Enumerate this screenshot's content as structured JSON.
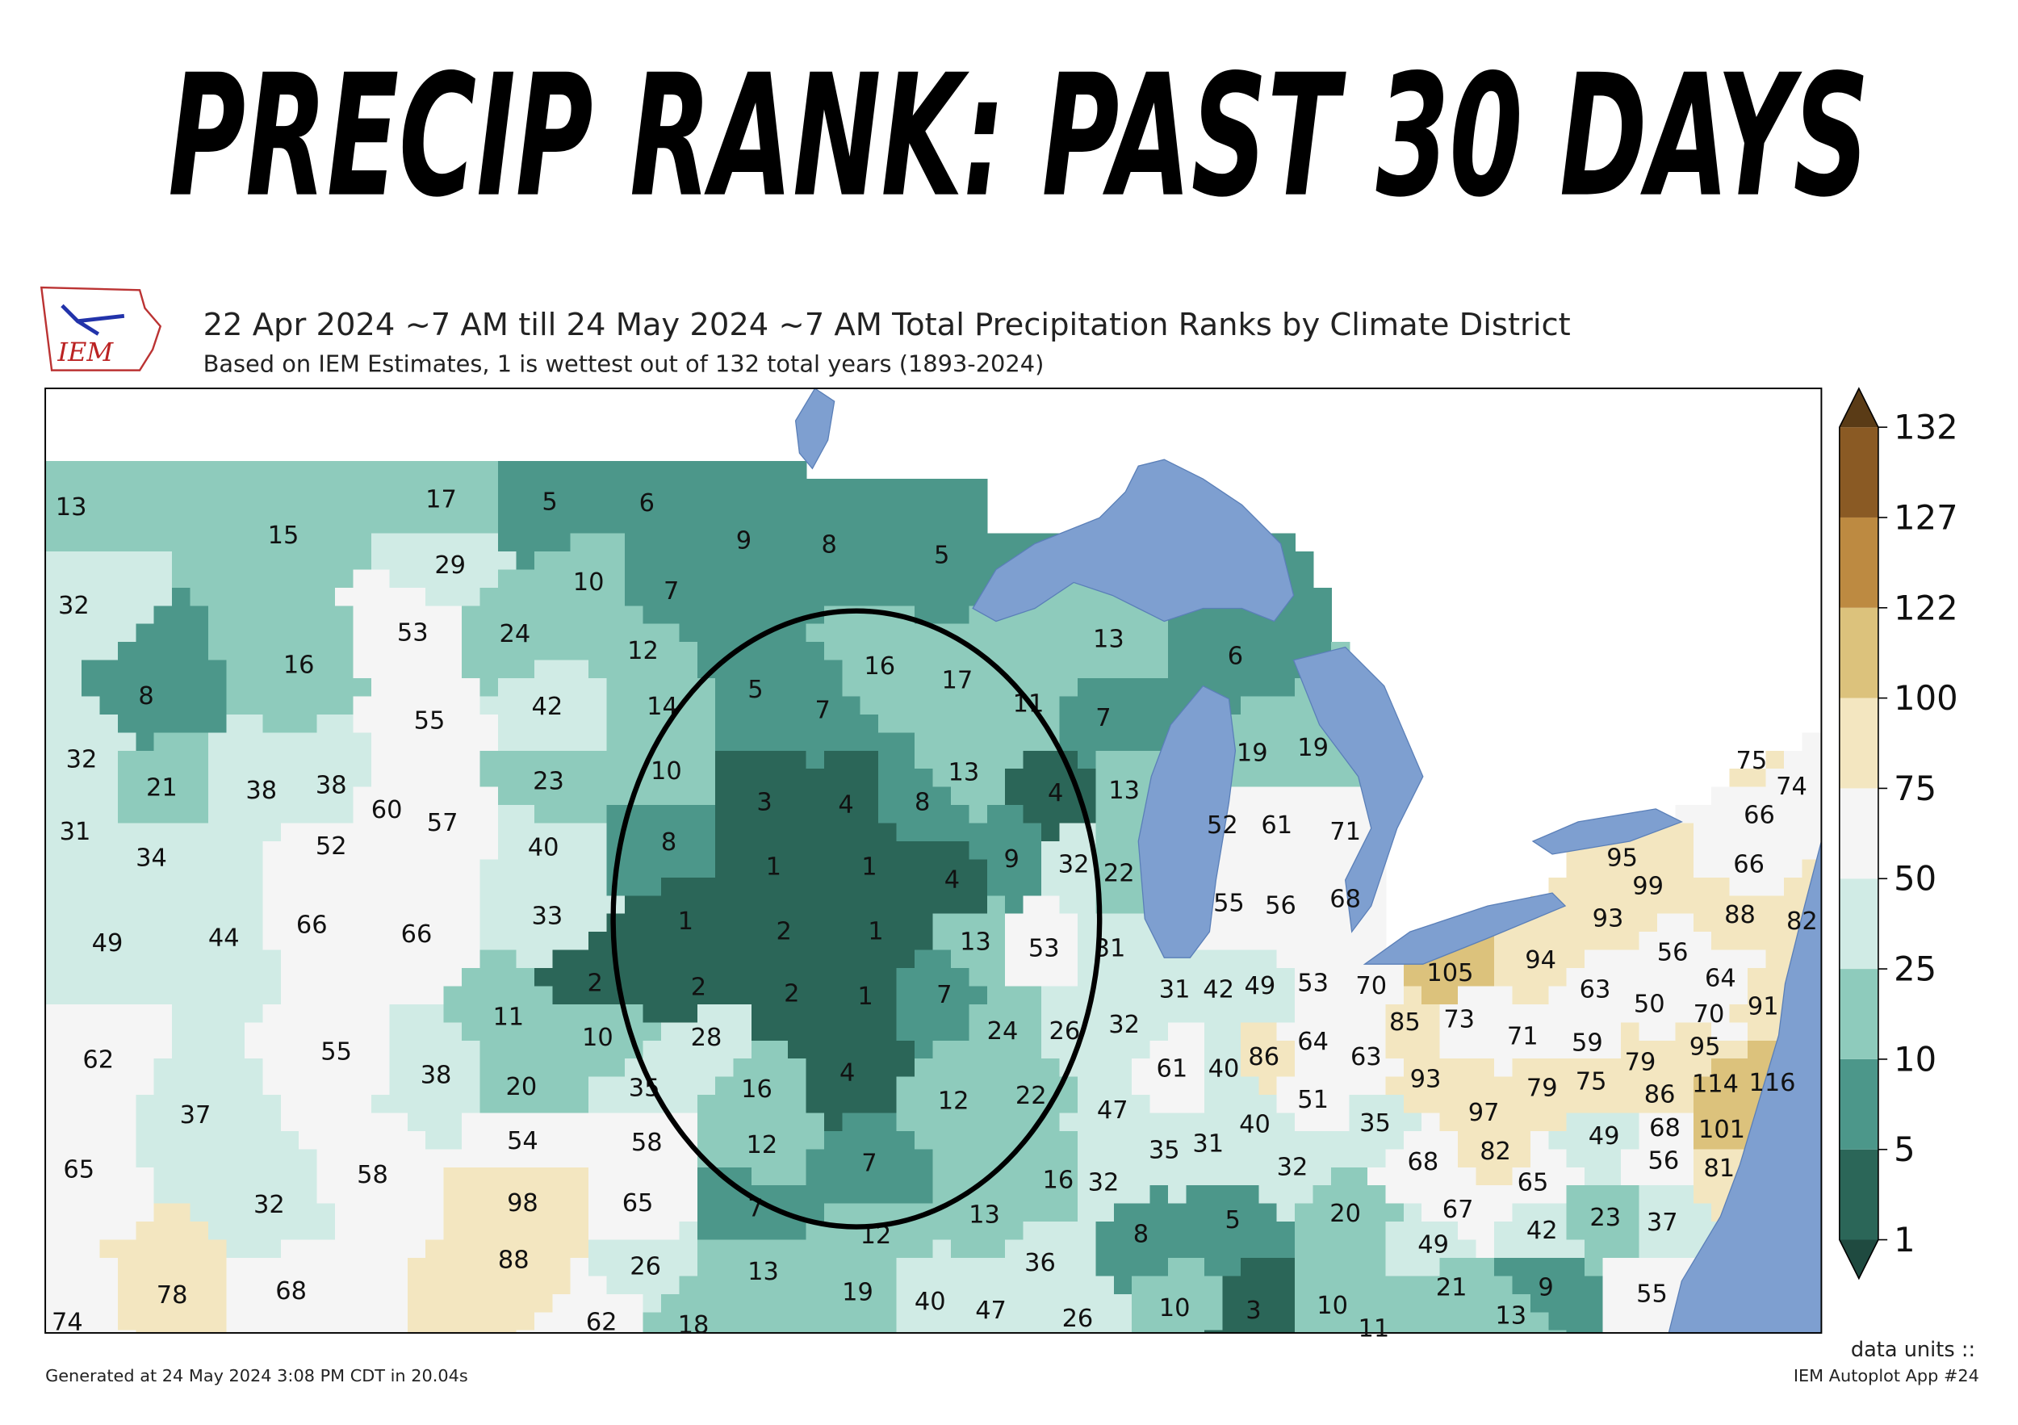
{
  "title": "PRECIP RANK: PAST 30 DAYS",
  "map": {
    "heading": "22 Apr 2024 ~7 AM till 24 May 2024 ~7 AM Total Precipitation Ranks by Climate District",
    "subtitle": "Based on IEM Estimates, 1 is wettest out of 132 total years (1893-2024)",
    "logo": "IEM",
    "ranks": [
      13,
      15,
      32,
      16,
      8,
      17,
      5,
      6,
      29,
      10,
      7,
      53,
      24,
      12,
      9,
      8,
      5,
      55,
      42,
      14,
      5,
      7,
      16,
      17,
      11,
      7,
      13,
      6,
      32,
      21,
      38,
      38,
      31,
      34,
      52,
      60,
      57,
      23,
      10,
      40,
      8,
      3,
      4,
      8,
      13,
      4,
      13,
      19,
      19,
      52,
      61,
      71,
      1,
      1,
      4,
      9,
      32,
      22,
      49,
      44,
      66,
      66,
      33,
      1,
      2,
      1,
      13,
      53,
      31,
      55,
      56,
      68,
      2,
      2,
      2,
      1,
      7,
      11,
      10,
      28,
      24,
      26,
      32,
      31,
      42,
      49,
      53,
      70,
      105,
      85,
      73,
      94,
      56,
      63,
      50,
      64,
      70,
      91,
      62,
      55,
      38,
      37,
      20,
      35,
      16,
      4,
      12,
      22,
      47,
      61,
      40,
      86,
      64,
      63,
      93,
      71,
      59,
      79,
      95,
      54,
      58,
      12,
      65,
      58,
      32,
      51,
      35,
      97,
      79,
      75,
      86,
      114,
      116,
      98,
      65,
      7,
      7,
      16,
      32,
      35,
      31,
      40,
      32,
      68,
      82,
      65,
      49,
      68,
      101,
      56,
      81,
      12,
      13,
      8,
      5,
      20,
      67,
      42,
      23,
      37,
      49,
      88,
      26,
      13,
      78,
      68,
      36,
      21,
      9,
      13,
      55,
      74,
      62,
      18,
      19,
      40,
      47,
      26,
      10,
      3,
      10,
      11,
      75,
      74,
      66,
      95,
      66,
      99,
      88,
      93,
      82
    ],
    "colorbar": {
      "bounds": [
        1,
        5,
        10,
        25,
        50,
        75,
        100,
        122,
        127,
        132
      ],
      "colors": [
        "#2b6658",
        "#4c978a",
        "#8ecbbc",
        "#d0ebe5",
        "#f5f5f5",
        "#f3e6c0",
        "#dcc27c",
        "#bd8a41",
        "#8a5a24"
      ],
      "under_color": "#1f4a40",
      "over_color": "#5a3b16"
    }
  },
  "footer": {
    "generated": "Generated at 24 May 2024 3:08 PM CDT in 20.04s",
    "units": "data units ::",
    "app": "IEM Autoplot App #24"
  }
}
